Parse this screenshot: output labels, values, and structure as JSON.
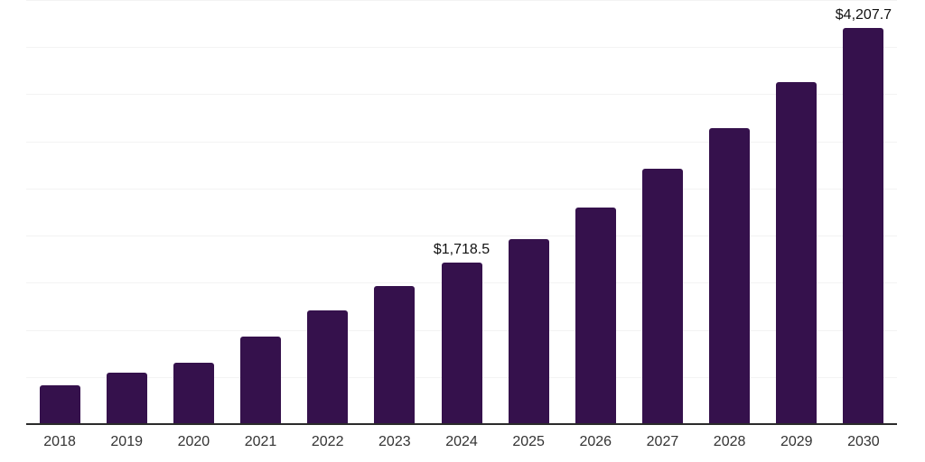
{
  "chart_data": {
    "type": "bar",
    "title": "",
    "xlabel": "",
    "ylabel": "",
    "categories": [
      "2018",
      "2019",
      "2020",
      "2021",
      "2022",
      "2023",
      "2024",
      "2025",
      "2026",
      "2027",
      "2028",
      "2029",
      "2030"
    ],
    "values": [
      415,
      549,
      654,
      926,
      1209,
      1462,
      1718.5,
      1966,
      2295,
      2707,
      3140,
      3629,
      4207.7
    ],
    "value_labels": {
      "2024": "$1,718.5",
      "2030": "$4,207.7"
    },
    "ylim": [
      0,
      4500
    ],
    "gridline_step": 500,
    "grid": true,
    "legend_position": "none",
    "colors": {
      "bar": "#35114C",
      "grid": "#f3f3f3",
      "axis": "#2b2b2b",
      "tick_label": "#333333",
      "value_label": "#111111",
      "background": "#ffffff"
    }
  }
}
